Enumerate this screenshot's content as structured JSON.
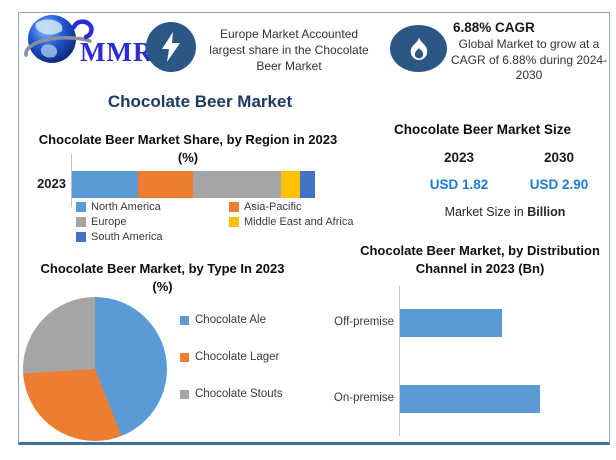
{
  "brand": {
    "logo_text": "MMR"
  },
  "colors": {
    "title": "#1F3864",
    "icon_circle": "#2A5784",
    "border_bottom": "#41719C",
    "axis_line": "#bfbfbf"
  },
  "header": {
    "highlight_banner": "Europe Market Accounted largest share in the Chocolate Beer Market",
    "cagr_title": "6.88% CAGR",
    "cagr_text": "Global Market to grow at a CAGR of 6.88% during 2024-2030"
  },
  "main_title": "Chocolate Beer Market",
  "market_size": {
    "title": "Chocolate Beer Market Size",
    "year_start": "2023",
    "year_end": "2030",
    "value_start": "USD 1.82",
    "value_end": "USD 2.90",
    "note_prefix": "Market Size in ",
    "note_bold": "Billion",
    "value_color": "#1b7cd6"
  },
  "chart_data": [
    {
      "type": "bar",
      "subtype": "stacked-horizontal",
      "title": "Chocolate Beer Market Share, by Region in 2023 (%)",
      "categories": [
        "2023"
      ],
      "unit": "%",
      "xlim": [
        0,
        100
      ],
      "legend_position": "bottom",
      "series": [
        {
          "name": "North America",
          "value": 27,
          "color": "#5B9BD5"
        },
        {
          "name": "Asia-Pacific",
          "value": 23,
          "color": "#ED7D31"
        },
        {
          "name": "Europe",
          "value": 36,
          "color": "#A5A5A5"
        },
        {
          "name": "Middle East and Africa",
          "value": 8,
          "color": "#FFC000"
        },
        {
          "name": "South America",
          "value": 6,
          "color": "#4472C4"
        }
      ]
    },
    {
      "type": "pie",
      "title": "Chocolate Beer Market, by Type In 2023 (%)",
      "start_angle_deg": 0,
      "legend_position": "right",
      "slices": [
        {
          "label": "Chocolate Ale",
          "value": 44,
          "color": "#5B9BD5"
        },
        {
          "label": "Chocolate Lager",
          "value": 30,
          "color": "#ED7D31"
        },
        {
          "label": "Chocolate Stouts",
          "value": 26,
          "color": "#A5A5A5"
        }
      ]
    },
    {
      "type": "bar",
      "subtype": "horizontal",
      "title": "Chocolate Beer Market, by Distribution Channel in 2023 (Bn)",
      "categories": [
        "Off-premise",
        "On-premise"
      ],
      "values": [
        0.77,
        1.05
      ],
      "unit": "Bn",
      "xlim": [
        0,
        1.4
      ],
      "color": "#5B9BD5"
    }
  ]
}
